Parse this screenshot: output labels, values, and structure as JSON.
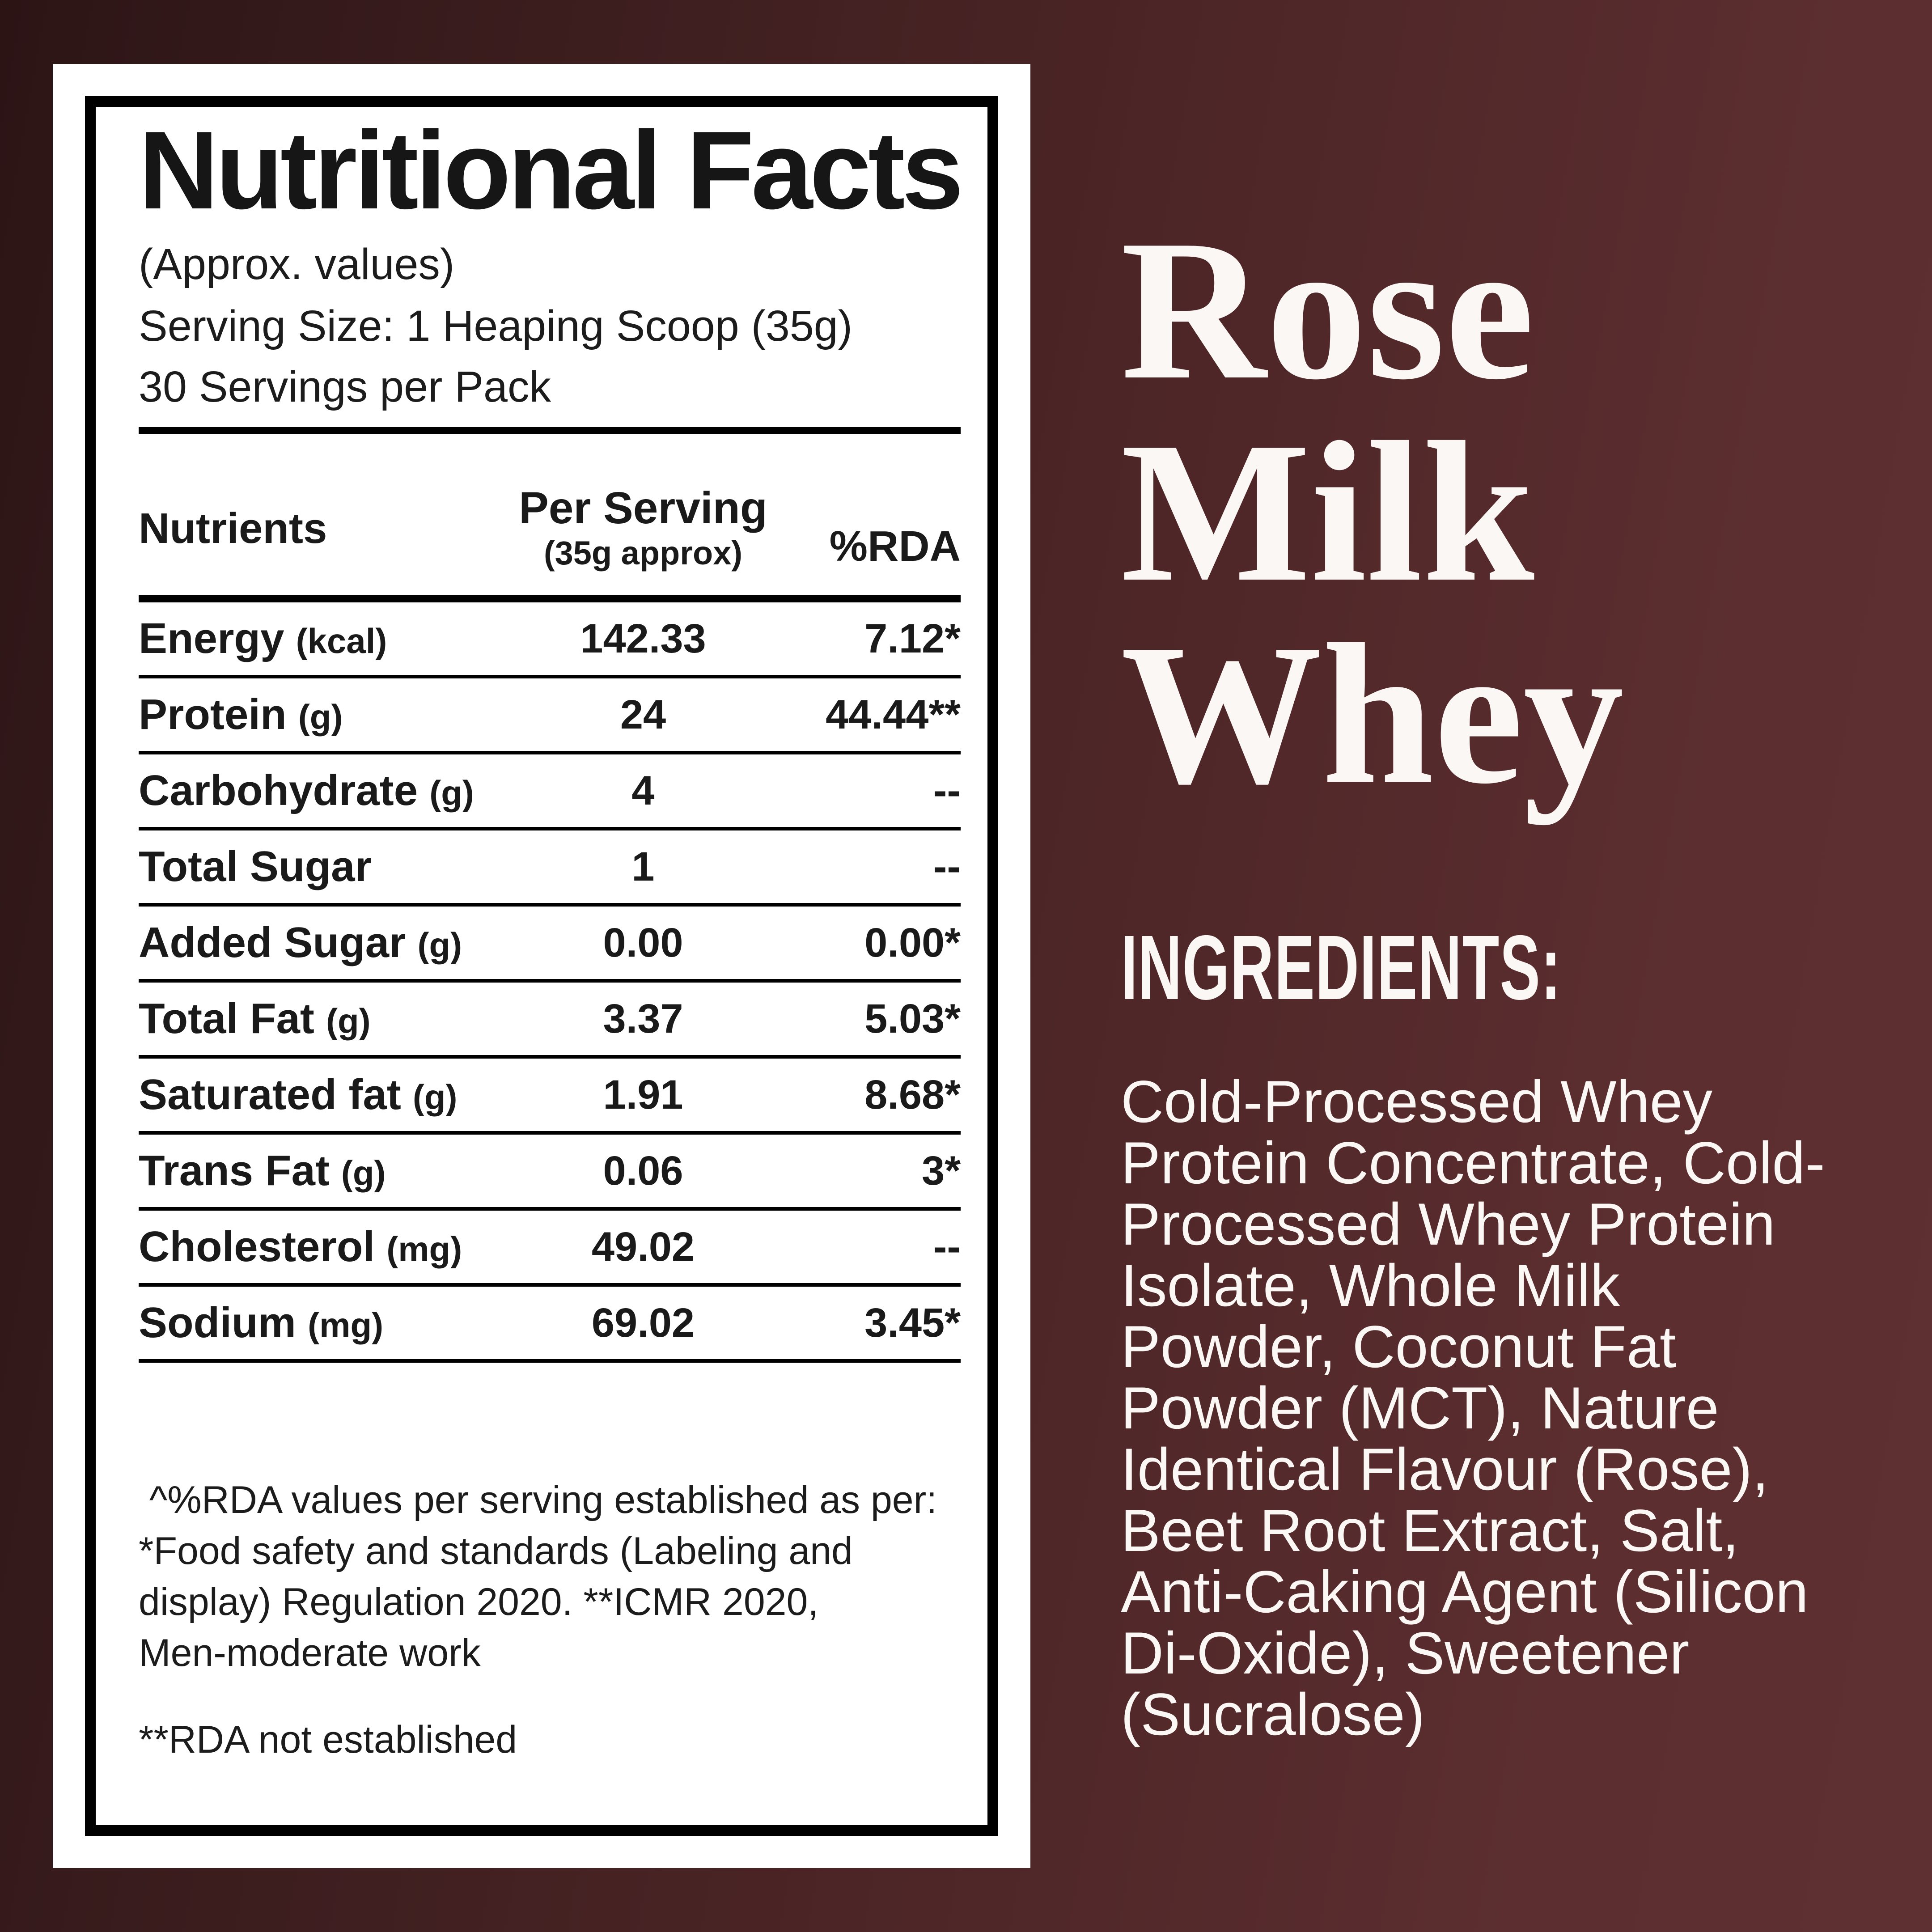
{
  "colors": {
    "background_dark": "#2c1415",
    "background_light": "#5e3031",
    "panel_background": "#ffffff",
    "panel_text": "#1a1a1a",
    "right_text": "#fbf7f5"
  },
  "panel": {
    "title": "Nutritional Facts",
    "subtitle": "(Approx. values)",
    "serving_size": "Serving Size: 1 Heaping Scoop (35g)",
    "servings_per_pack": "30 Servings per Pack",
    "table": {
      "headers": {
        "nutrients": "Nutrients",
        "per_serving": "Per Serving",
        "per_serving_sub": "(35g approx)",
        "rda": "%RDA"
      },
      "rows": [
        {
          "label": "Energy",
          "unit": "(kcal)",
          "per_serving": "142.33",
          "rda": "7.12*"
        },
        {
          "label": "Protein",
          "unit": "(g)",
          "per_serving": "24",
          "rda": "44.44**"
        },
        {
          "label": "Carbohydrate",
          "unit": "(g)",
          "per_serving": "4",
          "rda": "--"
        },
        {
          "label": "Total Sugar",
          "unit": "",
          "per_serving": "1",
          "rda": "--"
        },
        {
          "label": "Added Sugar",
          "unit": "(g)",
          "per_serving": "0.00",
          "rda": "0.00*"
        },
        {
          "label": "Total Fat",
          "unit": "(g)",
          "per_serving": "3.37",
          "rda": "5.03*"
        },
        {
          "label": "Saturated fat",
          "unit": "(g)",
          "per_serving": "1.91",
          "rda": "8.68*"
        },
        {
          "label": "Trans Fat",
          "unit": "(g)",
          "per_serving": "0.06",
          "rda": "3*"
        },
        {
          "label": "Cholesterol",
          "unit": "(mg)",
          "per_serving": "49.02",
          "rda": "--"
        },
        {
          "label": "Sodium",
          "unit": "(mg)",
          "per_serving": "69.02",
          "rda": "3.45*"
        }
      ]
    },
    "footnote_1_lines": [
      " ^%RDA values per serving established as per:",
      "*Food safety and standards (Labeling and",
      "display) Regulation 2020. **ICMR 2020,",
      "Men-moderate work"
    ],
    "footnote_2": "**RDA not established"
  },
  "right": {
    "product_title_lines": [
      "Rose",
      "Milk",
      "Whey"
    ],
    "ingredients_heading": "INGREDIENTS:",
    "ingredients_lines": [
      "Cold-Processed Whey",
      "Protein Concentrate, Cold-",
      "Processed Whey Protein",
      "Isolate, Whole Milk",
      "Powder, Coconut Fat",
      "Powder (MCT), Nature",
      "Identical Flavour (Rose),",
      "Beet Root Extract, Salt,",
      "Anti-Caking Agent (Silicon",
      "Di-Oxide), Sweetener",
      "(Sucralose)"
    ]
  }
}
